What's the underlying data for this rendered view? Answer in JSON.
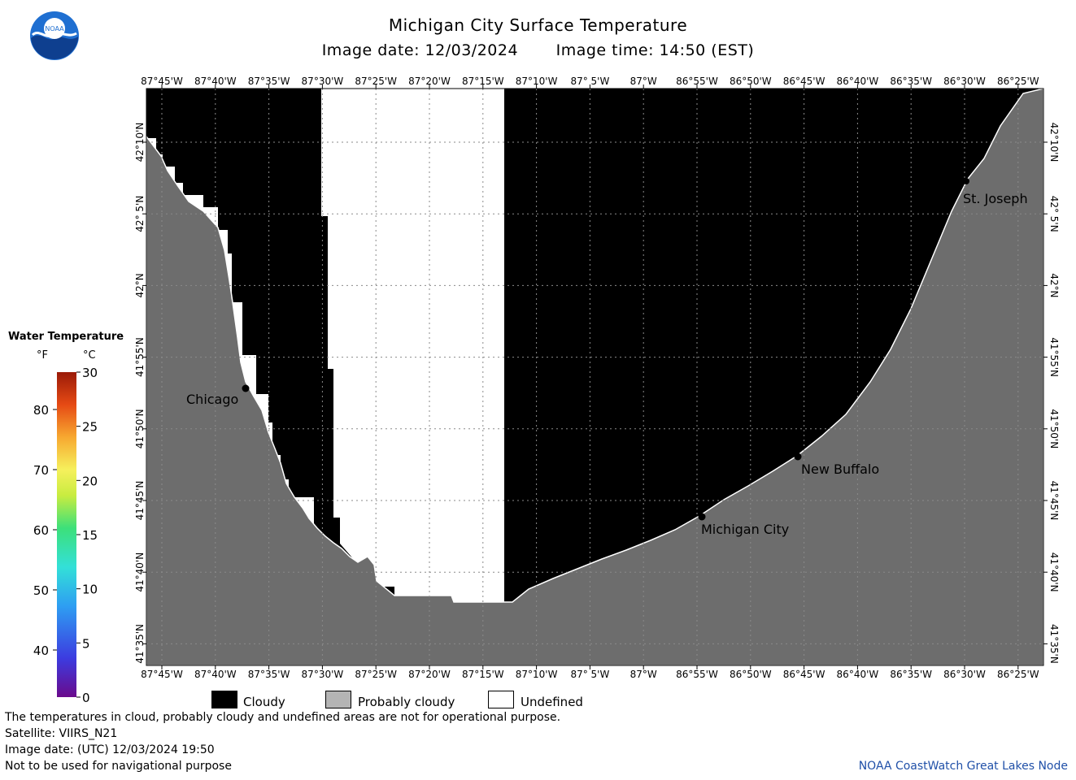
{
  "header": {
    "title": "Michigan City Surface Temperature",
    "image_date": "Image date: 12/03/2024",
    "image_time": "Image time: 14:50 (EST)"
  },
  "logo": {
    "icon": "noaa-logo",
    "text": "NOAA"
  },
  "map": {
    "lon_labels": [
      "87°45'W",
      "87°40'W",
      "87°35'W",
      "87°30'W",
      "87°25'W",
      "87°20'W",
      "87°15'W",
      "87°10'W",
      "87° 5'W",
      "87°W",
      "86°55'W",
      "86°50'W",
      "86°45'W",
      "86°40'W",
      "86°35'W",
      "86°30'W",
      "86°25'W"
    ],
    "lat_labels": [
      "42°10'N",
      "42° 5'N",
      "42°N",
      "41°55'N",
      "41°50'N",
      "41°45'N",
      "41°40'N",
      "41°35'N"
    ],
    "cities": [
      {
        "name": "Chicago"
      },
      {
        "name": "Michigan City"
      },
      {
        "name": "New Buffalo"
      },
      {
        "name": "St. Joseph"
      }
    ],
    "colors": {
      "land": "#6d6d6d",
      "cloudy": "#000000",
      "undefined": "#ffffff",
      "grid": "#8a8a8a"
    }
  },
  "legend": {
    "title": "Water Temperature",
    "unit_f": "°F",
    "unit_c": "°C",
    "f_ticks": [
      "80",
      "70",
      "60",
      "50",
      "40"
    ],
    "c_ticks": [
      "30",
      "25",
      "20",
      "15",
      "10",
      "5",
      "0"
    ]
  },
  "categories": [
    {
      "label": "Cloudy",
      "color": "#000000"
    },
    {
      "label": "Probably cloudy",
      "color": "#b4b4b4"
    },
    {
      "label": "Undefined",
      "color": "#ffffff"
    }
  ],
  "footer": {
    "disclaimer": "The temperatures in cloud, probably cloudy and undefined areas are not for operational purpose.",
    "satellite": "Satellite: VIIRS_N21",
    "utc_date": "Image date: (UTC) 12/03/2024  19:50",
    "nav_warning": "Not to be used for navigational purpose",
    "credit": "NOAA CoastWatch Great Lakes Node"
  }
}
